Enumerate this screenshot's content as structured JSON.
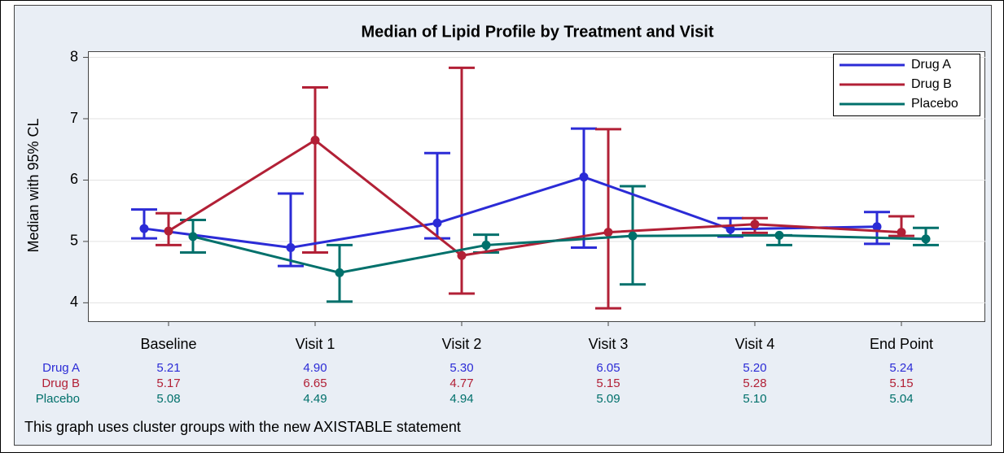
{
  "chart_data": {
    "type": "line",
    "title": "Median of Lipid Profile by Treatment and Visit",
    "ylabel": "Median with 95% CL",
    "footnote": "This graph uses cluster groups with the new AXISTABLE statement",
    "categories": [
      "Baseline",
      "Visit 1",
      "Visit 2",
      "Visit 3",
      "Visit 4",
      "End Point"
    ],
    "ylim": [
      3.7,
      8.1
    ],
    "yticks": [
      4,
      5,
      6,
      7,
      8
    ],
    "grid": true,
    "legend": "top-right",
    "series": [
      {
        "name": "Drug A",
        "color": "#2b2bd6",
        "values": [
          5.21,
          4.9,
          5.3,
          6.05,
          5.2,
          5.24
        ],
        "value_labels": [
          "5.21",
          "4.90",
          "5.30",
          "6.05",
          "5.20",
          "5.24"
        ],
        "lower": [
          5.05,
          4.6,
          5.05,
          4.9,
          5.08,
          4.96
        ],
        "upper": [
          5.52,
          5.78,
          6.44,
          6.84,
          5.38,
          5.48
        ]
      },
      {
        "name": "Drug B",
        "color": "#b22036",
        "values": [
          5.17,
          6.65,
          4.77,
          5.15,
          5.28,
          5.15
        ],
        "value_labels": [
          "5.17",
          "6.65",
          "4.77",
          "5.15",
          "5.28",
          "5.15"
        ],
        "lower": [
          4.94,
          4.82,
          4.15,
          3.91,
          5.14,
          5.09
        ],
        "upper": [
          5.46,
          7.51,
          7.83,
          6.83,
          5.38,
          5.41
        ]
      },
      {
        "name": "Placebo",
        "color": "#00706b",
        "values": [
          5.08,
          4.49,
          4.94,
          5.09,
          5.1,
          5.04
        ],
        "value_labels": [
          "5.08",
          "4.49",
          "4.94",
          "5.09",
          "5.10",
          "5.04"
        ],
        "lower": [
          4.82,
          4.02,
          4.82,
          4.3,
          4.94,
          4.94
        ],
        "upper": [
          5.35,
          4.94,
          5.11,
          5.9,
          5.1,
          5.22
        ]
      }
    ]
  }
}
